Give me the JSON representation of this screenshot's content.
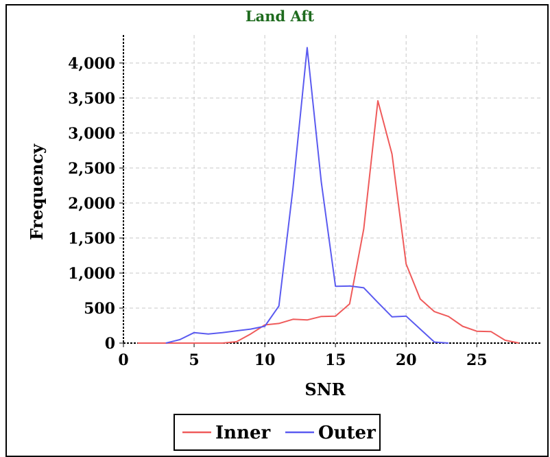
{
  "chart_data": {
    "type": "line",
    "title": "Land Aft",
    "xlabel": "SNR",
    "ylabel": "Frequency",
    "xlim": [
      0,
      29.5
    ],
    "ylim": [
      0,
      4400
    ],
    "xticks": [
      0,
      5,
      10,
      15,
      20,
      25
    ],
    "xtick_labels": [
      "0",
      "5",
      "10",
      "15",
      "20",
      "25"
    ],
    "yticks": [
      0,
      500,
      1000,
      1500,
      2000,
      2500,
      3000,
      3500,
      4000
    ],
    "ytick_labels": [
      "0",
      "500",
      "1,000",
      "1,500",
      "2,000",
      "2,500",
      "3,000",
      "3,500",
      "4,000"
    ],
    "grid": true,
    "legend_position": "bottom-center",
    "series": [
      {
        "name": "Inner",
        "color": "#ef5a5a",
        "x": [
          1,
          2,
          3,
          4,
          5,
          6,
          7,
          8,
          9,
          10,
          11,
          12,
          13,
          14,
          15,
          16,
          17,
          18,
          19,
          20,
          21,
          22,
          23,
          24,
          25,
          26,
          27,
          28
        ],
        "y": [
          0,
          0,
          0,
          0,
          0,
          0,
          0,
          20,
          130,
          260,
          280,
          340,
          330,
          380,
          385,
          560,
          1630,
          3460,
          2700,
          1130,
          630,
          450,
          380,
          240,
          170,
          165,
          40,
          0
        ]
      },
      {
        "name": "Outer",
        "color": "#5a5af0",
        "x": [
          3,
          4,
          5,
          6,
          7,
          8,
          9,
          10,
          11,
          12,
          13,
          14,
          15,
          16,
          17,
          18,
          19,
          20,
          21,
          22,
          23
        ],
        "y": [
          0,
          50,
          150,
          130,
          150,
          175,
          200,
          240,
          530,
          2220,
          4220,
          2300,
          810,
          815,
          790,
          580,
          375,
          385,
          200,
          15,
          0
        ]
      }
    ]
  }
}
